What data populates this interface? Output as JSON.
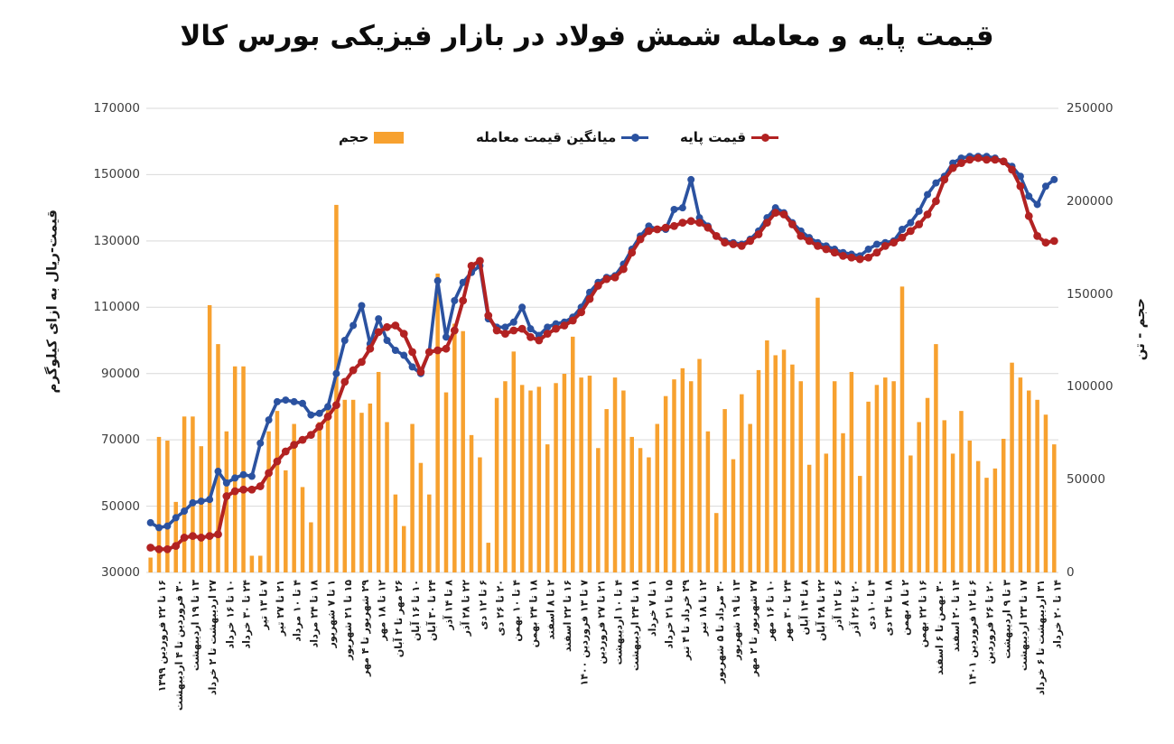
{
  "title": "قیمت پایه و معامله شمش فولاد در بازار فیزیکی بورس کالا",
  "legend": {
    "volume_label": "حجم",
    "avg_label": "میانگین قیمت معامله",
    "base_label": "قیمت پایه"
  },
  "axes": {
    "left_title": "قیمت-ریال به ازای کیلوگرم",
    "right_title": "حجم - تن",
    "left_min": 30000,
    "left_max": 170000,
    "right_min": 0,
    "right_max": 250000,
    "left_ticks": [
      170000,
      150000,
      130000,
      110000,
      90000,
      70000,
      50000,
      30000
    ],
    "right_ticks": [
      250000,
      200000,
      150000,
      100000,
      50000,
      0
    ]
  },
  "colors": {
    "volume": "#F7A12F",
    "avg": "#2B52A0",
    "base": "#B22222",
    "grid": "#D9D9D9",
    "tick_text": "#3d3d3d"
  },
  "chart_data": {
    "type": "combo",
    "label_every": 2,
    "legend_position": "top",
    "grid": "horizontal",
    "categories": [
      "۱۶ تا ۲۲ فروردین ۱۳۹۹",
      "۳۰ فروردین تا ۴ اردیبهشت",
      "۱۳ تا ۱۹ اردیبهشت",
      "۲۷ اردیبهشت تا ۲ خرداد",
      "۱۰ تا ۱۶ خرداد",
      "۲۴ تا ۳۰ خرداد",
      "۷ تا ۱۳ تیر",
      "۲۱ تا ۲۷ تیر",
      "۴ تا ۱۰ مرداد",
      "۱۸ تا ۲۴ مرداد",
      "۱ تا ۷ شهریور",
      "۱۵ تا ۲۱ شهریور",
      "۲۹ شهریور تا ۴ مهر",
      "۱۲ تا ۱۸ مهر",
      "۲۶ مهر تا ۲ آبان",
      "۱۰ تا ۱۶ آبان",
      "۲۴ تا ۳۰ آبان",
      "۸ تا ۱۴ آذر",
      "۲۲ تا ۲۸ آذر",
      "۶ تا ۱۲ دی",
      "۲۰ تا ۲۶ دی",
      "۴ تا ۱۰ بهمن",
      "۱۸ تا ۲۴ بهمن",
      "۲ تا ۸ اسفند",
      "۱۶ تا ۲۲ اسفند",
      "۷ تا ۱۳ فروردین ۱۴۰۰",
      "۲۱ تا ۲۷ فروردین",
      "۴ تا ۱۰ اردیبهشت",
      "۱۸ تا ۲۴ اردیبهشت",
      "۱ تا ۷ خرداد",
      "۱۵ تا ۲۱ خرداد",
      "۲۹ خرداد تا ۴ تیر",
      "۱۲ تا ۱۸ تیر",
      "۳۰ مرداد تا ۵ شهریور",
      "۱۳ تا ۱۹ شهریور",
      "۲۷ شهریور تا ۲ مهر",
      "۱۰ تا ۱۶ مهر",
      "۲۴ تا ۳۰ مهر",
      "۸ تا ۱۴ آبان",
      "۲۲ تا ۲۸ آبان",
      "۶ تا ۱۲ آذر",
      "۲۰ تا ۲۶ آذر",
      "۴ تا ۱۰ دی",
      "۱۸ تا ۲۴ دی",
      "۲ تا ۸ بهمن",
      "۱۶ تا ۲۲ بهمن",
      "۳۰ بهمن تا ۶ اسفند",
      "۱۴ تا ۲۰ اسفند",
      "۶ تا ۱۲ فروردین ۱۴۰۱",
      "۲۰ تا ۲۶ فروردین",
      "۳ تا ۹ اردیبهشت",
      "۱۷ تا ۲۳ اردیبهشت",
      "۳۱ اردیبهشت تا ۶ خرداد",
      "۱۴ تا ۲۰ خرداد"
    ],
    "series": [
      {
        "name": "حجم",
        "type": "bar",
        "axis": "right",
        "values": [
          8000,
          73000,
          71000,
          38000,
          84000,
          84000,
          68000,
          144000,
          123000,
          76000,
          111000,
          111000,
          9000,
          9000,
          76000,
          87000,
          55000,
          80000,
          46000,
          27000,
          81000,
          91000,
          198000,
          93000,
          93000,
          86000,
          91000,
          108000,
          81000,
          42000,
          25000,
          80000,
          59000,
          42000,
          161000,
          97000,
          134000,
          130000,
          74000,
          62000,
          16000,
          94000,
          103000,
          119000,
          101000,
          98000,
          100000,
          69000,
          102000,
          107000,
          127000,
          105000,
          106000,
          67000,
          88000,
          105000,
          98000,
          73000,
          67000,
          62000,
          80000,
          95000,
          104000,
          110000,
          103000,
          115000,
          76000,
          32000,
          88000,
          61000,
          96000,
          80000,
          109000,
          125000,
          117000,
          120000,
          112000,
          103000,
          58000,
          148000,
          64000,
          103000,
          75000,
          108000,
          52000,
          92000,
          101000,
          105000,
          103000,
          154000,
          63000,
          81000,
          94000,
          123000,
          82000,
          64000,
          87000,
          71000,
          60000,
          51000,
          56000,
          72000,
          113000,
          105000,
          98000,
          93000,
          85000,
          69000
        ]
      },
      {
        "name": "میانگین قیمت معامله",
        "type": "line",
        "axis": "left",
        "values": [
          45000,
          43500,
          44000,
          46500,
          48500,
          51000,
          51500,
          52000,
          60500,
          57000,
          58500,
          59500,
          59000,
          69000,
          76000,
          81500,
          82000,
          81500,
          81000,
          77500,
          78000,
          80000,
          90000,
          100000,
          104500,
          110500,
          99000,
          106500,
          100000,
          97000,
          95500,
          92000,
          90000,
          96500,
          118000,
          101000,
          112000,
          117500,
          120500,
          122500,
          106500,
          104000,
          104000,
          105500,
          110000,
          103500,
          101500,
          104000,
          105000,
          105500,
          107000,
          110000,
          114500,
          117500,
          119000,
          119500,
          123000,
          127500,
          131500,
          134500,
          133500,
          133500,
          139500,
          140000,
          148500,
          137000,
          134500,
          131500,
          130000,
          129500,
          129000,
          130500,
          133000,
          137000,
          140000,
          138500,
          135500,
          133000,
          131000,
          129500,
          128500,
          127500,
          126500,
          126000,
          125500,
          127500,
          129000,
          129500,
          130000,
          133500,
          135500,
          139000,
          144000,
          147500,
          149500,
          153500,
          155000,
          155500,
          155500,
          155500,
          155000,
          154000,
          152500,
          149500,
          143500,
          141000,
          146500,
          148500
        ]
      },
      {
        "name": "قیمت پایه",
        "type": "line",
        "axis": "left",
        "values": [
          37500,
          37000,
          37000,
          38000,
          40500,
          41000,
          40500,
          41000,
          41500,
          53000,
          54500,
          55000,
          55000,
          56000,
          60000,
          63500,
          66500,
          68500,
          70000,
          71500,
          74000,
          77000,
          80500,
          87500,
          91000,
          93500,
          97500,
          102500,
          104000,
          104500,
          102000,
          96500,
          90500,
          96500,
          97000,
          97500,
          103000,
          112000,
          122500,
          124000,
          107500,
          103000,
          102000,
          103000,
          103500,
          101000,
          100000,
          102000,
          103500,
          104500,
          106000,
          108500,
          112500,
          116500,
          118500,
          119000,
          121500,
          126500,
          130500,
          133000,
          133500,
          134000,
          134500,
          135500,
          136000,
          135500,
          134000,
          131500,
          129500,
          129000,
          128500,
          130000,
          132000,
          135500,
          138500,
          138000,
          135000,
          131500,
          130000,
          128500,
          127500,
          126500,
          125500,
          125000,
          124500,
          125000,
          126500,
          128500,
          129500,
          131000,
          133000,
          135000,
          138000,
          142000,
          148500,
          152000,
          153500,
          154500,
          155000,
          154500,
          154500,
          154000,
          151500,
          146500,
          137500,
          131500,
          129500,
          130000
        ]
      }
    ]
  }
}
